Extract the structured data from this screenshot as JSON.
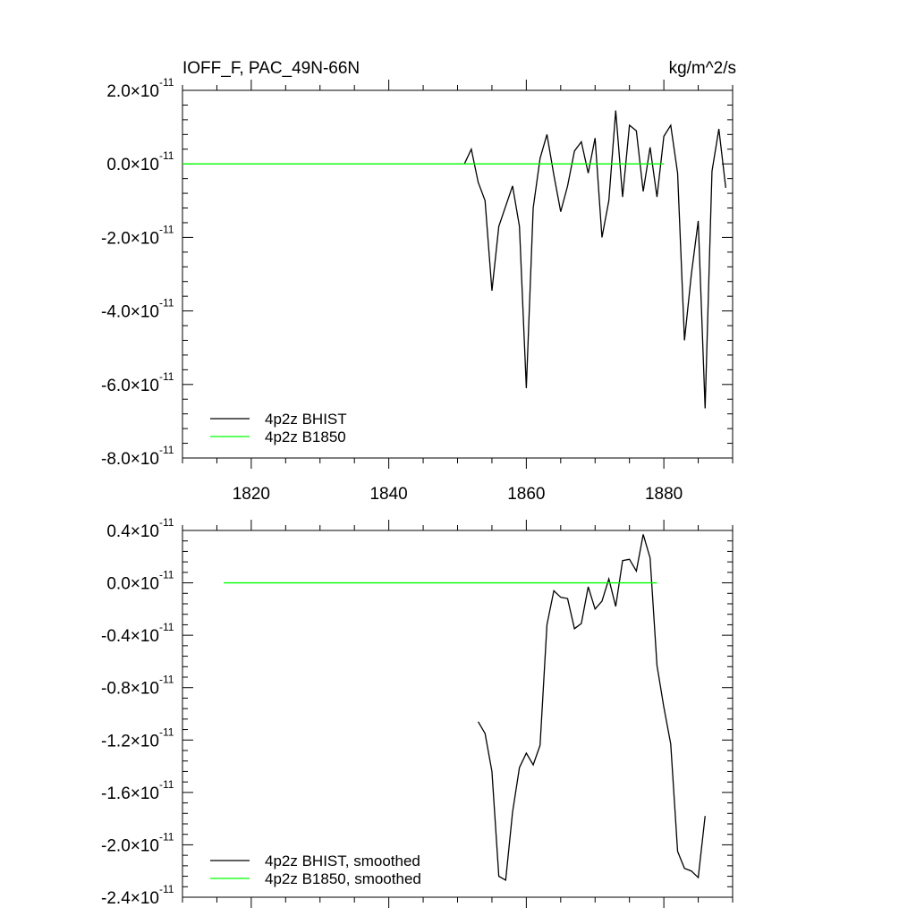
{
  "chart_data": [
    {
      "type": "line",
      "title": "IOFF_F, PAC_49N-66N",
      "units": "kg/m^2/s",
      "xlim": [
        1810,
        1890
      ],
      "ylim": [
        -8e-11,
        2e-11
      ],
      "x_ticks": [
        1820,
        1840,
        1860,
        1880
      ],
      "x_tick_labels": [
        "1820",
        "1840",
        "1860",
        "1880"
      ],
      "y_ticks": [
        -8e-11,
        -6e-11,
        -4e-11,
        -2e-11,
        0.0,
        2e-11
      ],
      "y_tick_labels": [
        {
          "mantissa": "-8.0",
          "exponent": "-11"
        },
        {
          "mantissa": "-6.0",
          "exponent": "-11"
        },
        {
          "mantissa": "-4.0",
          "exponent": "-11"
        },
        {
          "mantissa": "-2.0",
          "exponent": "-11"
        },
        {
          "mantissa": "0.0",
          "exponent": "-11"
        },
        {
          "mantissa": "2.0",
          "exponent": "-11"
        }
      ],
      "legend_position": "bottom-left",
      "series": [
        {
          "name": "4p2z BHIST",
          "color": "#000000",
          "x": [
            1851,
            1852,
            1853,
            1854,
            1855,
            1856,
            1857,
            1858,
            1859,
            1860,
            1861,
            1862,
            1863,
            1864,
            1865,
            1866,
            1867,
            1868,
            1869,
            1870,
            1871,
            1872,
            1873,
            1874,
            1875,
            1876,
            1877,
            1878,
            1879,
            1880,
            1881,
            1882,
            1883,
            1884,
            1885,
            1886,
            1887,
            1888,
            1889
          ],
          "y": [
            0.0,
            4e-12,
            -5e-12,
            -1e-11,
            -3.45e-11,
            -1.7e-11,
            -1.15e-11,
            -6e-12,
            -1.7e-11,
            -6.1e-11,
            -1.2e-11,
            1.5e-12,
            8e-12,
            -3e-12,
            -1.3e-11,
            -6e-12,
            3.5e-12,
            6e-12,
            -2.5e-12,
            7e-12,
            -2e-11,
            -1e-11,
            1.45e-11,
            -9e-12,
            1.05e-11,
            9e-12,
            -7.5e-12,
            4.5e-12,
            -9e-12,
            7.5e-12,
            1.05e-11,
            -2.5e-12,
            -4.8e-11,
            -3e-11,
            -1.55e-11,
            -6.65e-11,
            -2e-12,
            9.5e-12,
            -6.5e-12
          ]
        },
        {
          "name": "4p2z B1850",
          "color": "#00ff00",
          "x": [
            1810,
            1880
          ],
          "y": [
            0.0,
            0.0
          ]
        }
      ]
    },
    {
      "type": "line",
      "title": "",
      "xlim": [
        1810,
        1890
      ],
      "ylim": [
        -2.4e-11,
        4e-12
      ],
      "x_ticks": [
        1820,
        1840,
        1860,
        1880
      ],
      "y_ticks": [
        -2.4e-11,
        -2e-11,
        -1.6e-11,
        -1.2e-11,
        -8e-12,
        -4e-12,
        0.0,
        4e-12
      ],
      "y_tick_labels": [
        {
          "mantissa": "-2.4",
          "exponent": "-11"
        },
        {
          "mantissa": "-2.0",
          "exponent": "-11"
        },
        {
          "mantissa": "-1.6",
          "exponent": "-11"
        },
        {
          "mantissa": "-1.2",
          "exponent": "-11"
        },
        {
          "mantissa": "-0.8",
          "exponent": "-11"
        },
        {
          "mantissa": "-0.4",
          "exponent": "-11"
        },
        {
          "mantissa": "0.0",
          "exponent": "-11"
        },
        {
          "mantissa": "0.4",
          "exponent": "-11"
        }
      ],
      "legend_position": "bottom-left",
      "series": [
        {
          "name": "4p2z BHIST, smoothed",
          "color": "#000000",
          "x": [
            1853,
            1854,
            1855,
            1856,
            1857,
            1858,
            1859,
            1860,
            1861,
            1862,
            1863,
            1864,
            1865,
            1866,
            1867,
            1868,
            1869,
            1870,
            1871,
            1872,
            1873,
            1874,
            1875,
            1876,
            1877,
            1878,
            1879,
            1880,
            1881,
            1882,
            1883,
            1884,
            1885,
            1886
          ],
          "y": [
            -1.06e-11,
            -1.15e-11,
            -1.44e-11,
            -2.24e-11,
            -2.27e-11,
            -1.75e-11,
            -1.41e-11,
            -1.3e-11,
            -1.39e-11,
            -1.24e-11,
            -3.2e-12,
            -6e-13,
            -1.1e-12,
            -1.2e-12,
            -3.5e-12,
            -3.1e-12,
            -3e-13,
            -2e-12,
            -1.4e-12,
            3e-13,
            -1.8e-12,
            1.7e-12,
            1.8e-12,
            9e-13,
            3.7e-12,
            1.9e-12,
            -6.3e-12,
            -9.5e-12,
            -1.23e-11,
            -2.05e-11,
            -2.18e-11,
            -2.2e-11,
            -2.25e-11,
            -1.78e-11
          ]
        },
        {
          "name": "4p2z B1850, smoothed",
          "color": "#00ff00",
          "x": [
            1816,
            1879
          ],
          "y": [
            0.0,
            0.0
          ]
        }
      ]
    }
  ]
}
